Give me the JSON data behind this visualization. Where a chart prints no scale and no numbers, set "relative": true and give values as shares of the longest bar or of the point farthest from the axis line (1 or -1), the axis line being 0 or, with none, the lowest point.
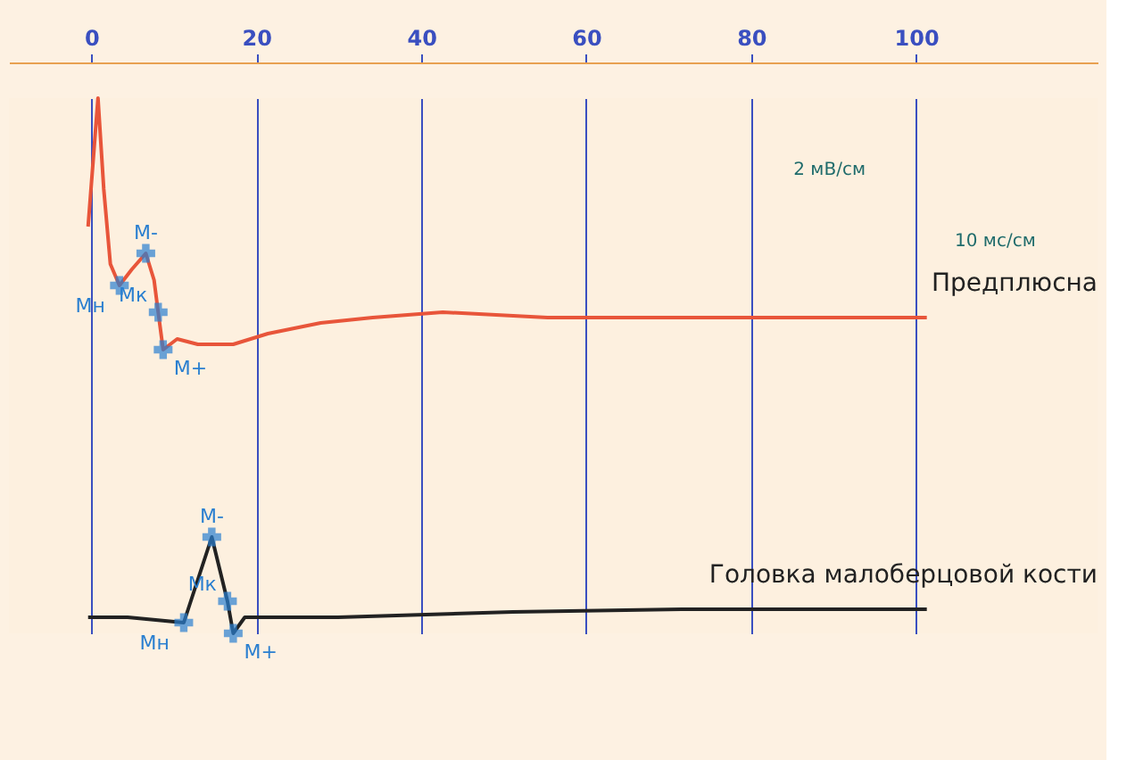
{
  "chart_data": {
    "type": "line",
    "relative": true,
    "xlim": [
      -10,
      122
    ],
    "xticks": [
      0,
      20,
      40,
      60,
      80,
      100
    ],
    "grid": "x",
    "legend": false,
    "marker": "none",
    "line_style": "solid",
    "series": [
      {
        "name": "Предплюсна",
        "color": "#e8553a",
        "x": [
          -0.4,
          0.8,
          1.5,
          2.3,
          3.4,
          4.9,
          6.6,
          7.6,
          8.1,
          8.7,
          10.4,
          12.9,
          17.2,
          21.4,
          27.8,
          34.1,
          42.6,
          55.3,
          72.2,
          101.3
        ],
        "values": [
          0.76,
          1.0,
          0.83,
          0.69,
          0.65,
          0.68,
          0.71,
          0.66,
          0.6,
          0.53,
          0.55,
          0.54,
          0.54,
          0.56,
          0.58,
          0.59,
          0.6,
          0.59,
          0.59,
          0.59
        ]
      },
      {
        "name": "Головка малоберцовой кости",
        "color": "#222222",
        "x": [
          -0.4,
          4.4,
          11.2,
          14.6,
          16.5,
          17.2,
          18.6,
          29.9,
          51.1,
          72.2,
          101.3
        ],
        "values": [
          0.03,
          0.03,
          0.02,
          0.18,
          0.06,
          0.0,
          0.03,
          0.03,
          0.04,
          0.045,
          0.045
        ]
      },
      {
        "type": "scatter",
        "marker": "cross",
        "color": "#2a7fd0",
        "x": [
          3.4,
          6.6,
          8.1,
          8.7,
          11.2,
          14.6,
          16.5,
          17.2
        ],
        "values": [
          0.65,
          0.71,
          0.6,
          0.53,
          0.02,
          0.18,
          0.06,
          0.0
        ]
      }
    ],
    "annotations": [
      {
        "text": "Мн",
        "x": 3.4,
        "y": 0.65
      },
      {
        "text": "М-",
        "x": 6.6,
        "y": 0.71
      },
      {
        "text": "Мк",
        "x": 8.1,
        "y": 0.6
      },
      {
        "text": "М+",
        "x": 8.7,
        "y": 0.53
      },
      {
        "text": "Мн",
        "x": 11.2,
        "y": 0.02
      },
      {
        "text": "М-",
        "x": 14.6,
        "y": 0.18
      },
      {
        "text": "Мк",
        "x": 16.5,
        "y": 0.06
      },
      {
        "text": "М+",
        "x": 17.2,
        "y": 0.0
      },
      "2 мВ/см",
      "10 мс/см"
    ]
  }
}
